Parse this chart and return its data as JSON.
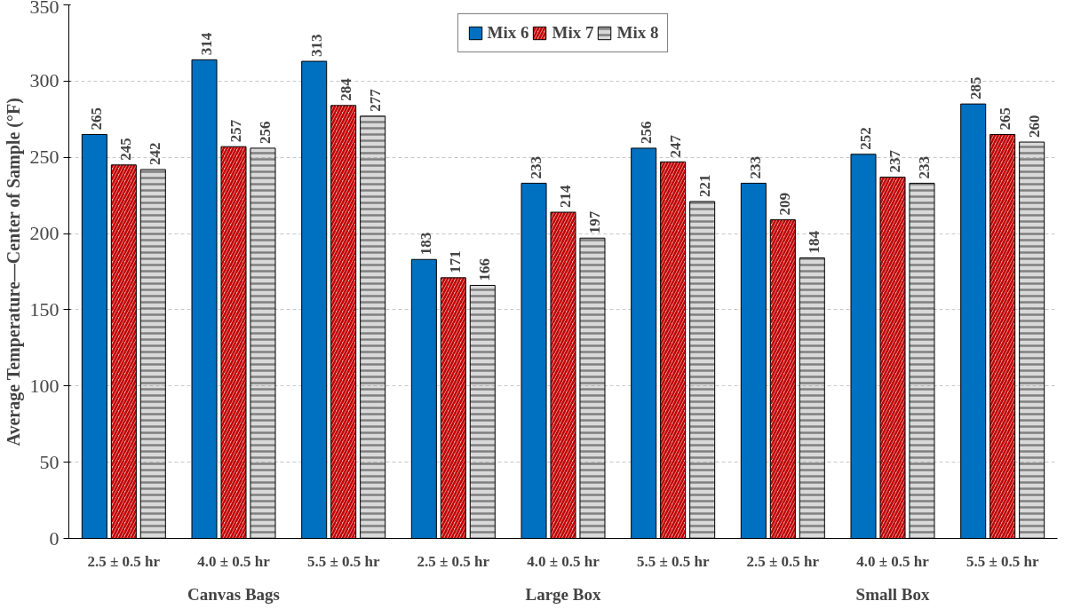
{
  "chart_data": {
    "type": "bar",
    "ylabel": "Average Temperature—Center of Sample (°F)",
    "categories": [
      "2.5 ± 0.5 hr",
      "4.0 ± 0.5 hr",
      "5.5 ± 0.5 hr",
      "2.5 ± 0.5 hr",
      "4.0 ± 0.5 hr",
      "5.5 ± 0.5 hr",
      "2.5 ± 0.5 hr",
      "4.0 ± 0.5 hr",
      "5.5 ± 0.5 hr"
    ],
    "annotations": [
      "Canvas Bags",
      "Large Box",
      "Small Box"
    ],
    "series": [
      {
        "name": "Mix 6",
        "color": "#0070c0",
        "values": [
          265,
          314,
          313,
          183,
          233,
          256,
          233,
          252,
          285
        ]
      },
      {
        "name": "Mix 7",
        "color": "#c00000",
        "values": [
          245,
          257,
          284,
          171,
          214,
          247,
          209,
          237,
          265
        ]
      },
      {
        "name": "Mix 8",
        "color": "#808080",
        "values": [
          242,
          256,
          277,
          166,
          197,
          221,
          184,
          233,
          260
        ]
      }
    ],
    "ylim": [
      0,
      350
    ],
    "yticks": [
      0,
      50,
      100,
      150,
      200,
      250,
      300,
      350
    ],
    "grid": "y",
    "legend": "top",
    "data_labels": true
  }
}
